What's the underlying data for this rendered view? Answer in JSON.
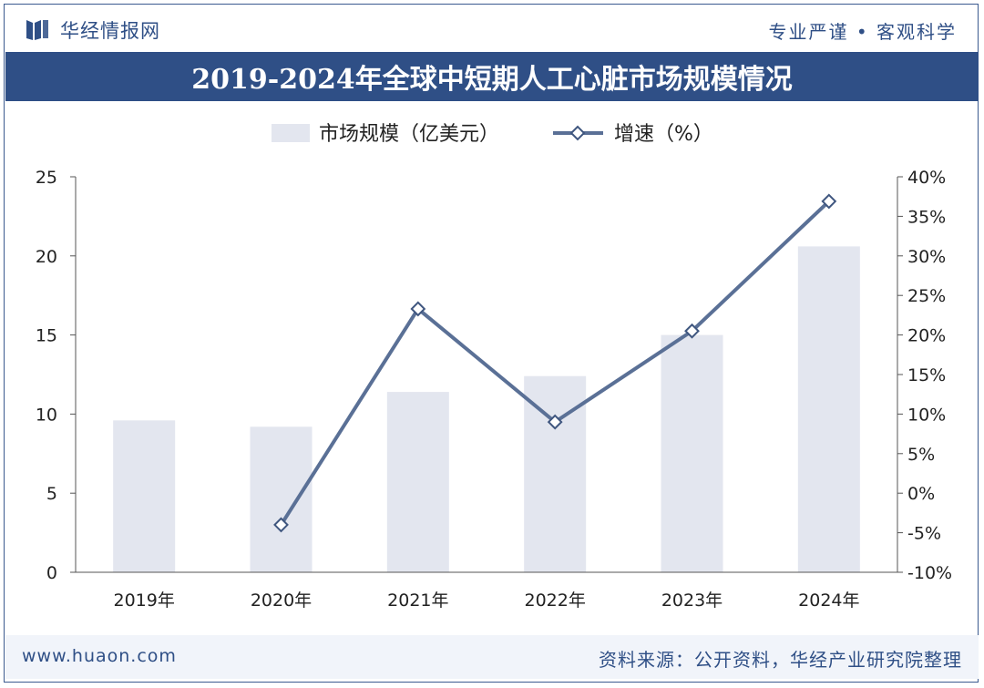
{
  "header": {
    "brand": "华经情报网",
    "slogan": "专业严谨 • 客观科学"
  },
  "footer": {
    "url": "www.huaon.com",
    "source": "资料来源：公开资料，华经产业研究院整理"
  },
  "colors": {
    "brand_blue": "#2f4f86",
    "bar": "#e3e6ef",
    "line": "#5a7096"
  },
  "chart_data": {
    "type": "bar",
    "title": "2019-2024年全球中短期人工心脏市场规模情况",
    "categories": [
      "2019年",
      "2020年",
      "2021年",
      "2022年",
      "2023年",
      "2024年"
    ],
    "series": [
      {
        "name": "市场规模（亿美元）",
        "type": "bar",
        "axis": "left",
        "values": [
          9.6,
          9.2,
          11.4,
          12.4,
          15.0,
          20.6
        ]
      },
      {
        "name": "增速（%）",
        "type": "line",
        "axis": "right",
        "values": [
          null,
          -4.0,
          23.3,
          9.0,
          20.5,
          36.9
        ]
      }
    ],
    "y_left": {
      "min": 0,
      "max": 25,
      "ticks": [
        "0",
        "5",
        "10",
        "15",
        "20",
        "25"
      ]
    },
    "y_right": {
      "min": -10,
      "max": 40,
      "ticks": [
        "-10%",
        "-5%",
        "0%",
        "5%",
        "10%",
        "15%",
        "20%",
        "25%",
        "30%",
        "35%",
        "40%"
      ]
    },
    "legend_position": "top",
    "grid": false
  }
}
